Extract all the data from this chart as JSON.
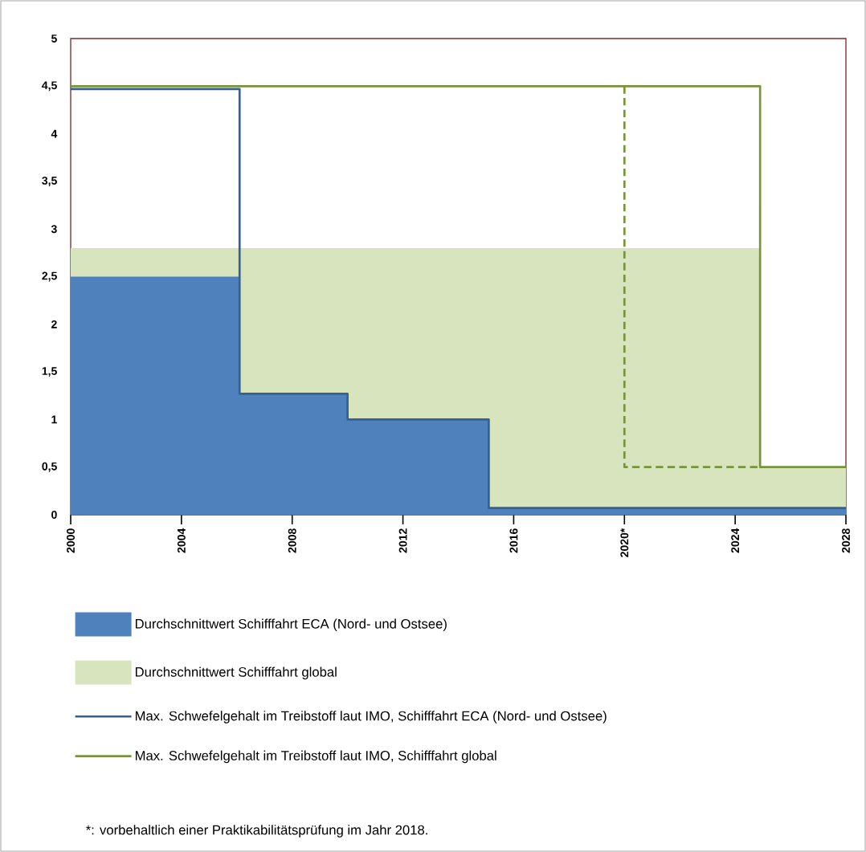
{
  "chart_data": {
    "type": "area",
    "xlim": [
      2000,
      2028
    ],
    "ylim": [
      0,
      5
    ],
    "xticks": [
      2000,
      2004,
      2008,
      2012,
      2016,
      {
        "value": 2020,
        "label": "2020*"
      },
      2024,
      2028
    ],
    "yticks": [
      0,
      {
        "value": 0.5,
        "label": "0,5"
      },
      1,
      {
        "value": 1.5,
        "label": "1,5"
      },
      2,
      {
        "value": 2.5,
        "label": "2,5"
      },
      3,
      {
        "value": 3.5,
        "label": "3,5"
      },
      4,
      {
        "value": 4.5,
        "label": "4,5"
      },
      5
    ],
    "grid": false,
    "legend": "bottom",
    "series": [
      {
        "name": "Durchschnittwert Schifffahrt ECA (Nord- und Ostsee)",
        "color": "#4f81bd",
        "x": [
          2000,
          2006.1,
          2006.1,
          2010,
          2010,
          2015.1,
          2015.1,
          2028
        ],
        "values": [
          2.5,
          2.5,
          1.27,
          1.27,
          1.0,
          1.0,
          0.07,
          0.07
        ]
      },
      {
        "name": "Durchschnittwert Schifffahrt global",
        "color": "#d7e4bd",
        "x": [
          2000,
          2024.9,
          2024.9,
          2028
        ],
        "values": [
          2.8,
          2.8,
          0.5,
          0.5
        ]
      },
      {
        "type": "line",
        "name": "Max. Schwefelgehalt im Treibstoff laut IMO, Schifffahrt ECA (Nord- und Ostsee)",
        "color": "#376092",
        "line_style": "solid",
        "x": [
          2000,
          2006.1,
          2006.1,
          2010,
          2010,
          2015.1,
          2015.1,
          2028
        ],
        "values": [
          4.47,
          4.47,
          1.27,
          1.27,
          1.0,
          1.0,
          0.07,
          0.07
        ]
      },
      {
        "type": "line",
        "name": "Max. Schwefelgehalt im Treibstoff laut IMO, Schifffahrt global",
        "color": "#77933c",
        "line_style": "solid",
        "x": [
          2000,
          2024.9,
          2024.9,
          2028
        ],
        "values": [
          4.5,
          4.5,
          0.5,
          0.5
        ]
      },
      {
        "type": "line",
        "color": "#77933c",
        "line_style": "dashed",
        "x": [
          2020,
          2020,
          2024.9
        ],
        "values": [
          4.5,
          0.5,
          0.5
        ]
      }
    ],
    "annotations": [
      "*: vorbehaltlich einer Praktikabilitätsprüfung im Jahr 2018."
    ]
  }
}
